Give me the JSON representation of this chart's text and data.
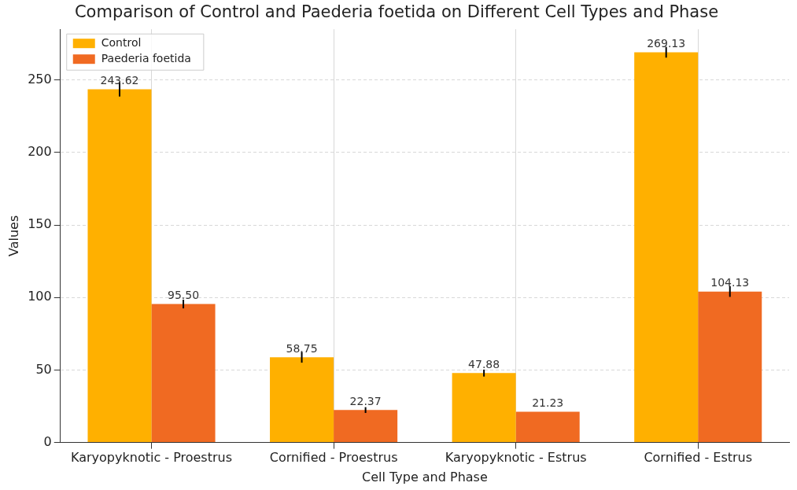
{
  "chart_data": {
    "type": "bar",
    "title": "Comparison of Control and Paederia foetida on Different Cell Types and Phase",
    "xlabel": "Cell Type and Phase",
    "ylabel": "Values",
    "categories": [
      "Karyopyknotic - Proestrus",
      "Cornified - Proestrus",
      "Karyopyknotic - Estrus",
      "Cornified - Estrus"
    ],
    "series": [
      {
        "name": "Control",
        "color": "#ffb000",
        "values": [
          243.62,
          58.75,
          47.88,
          269.13
        ],
        "value_labels": [
          "243.62",
          "58.75",
          "47.88",
          "269.13"
        ],
        "errors": [
          5,
          3.7,
          2.4,
          3.7
        ]
      },
      {
        "name": "Paederia foetida",
        "color": "#f06a22",
        "values": [
          95.5,
          22.37,
          21.23,
          104.13
        ],
        "value_labels": [
          "95.50",
          "22.37",
          "21.23",
          "104.13"
        ],
        "errors": [
          3,
          2,
          null,
          3.7
        ]
      }
    ],
    "ylim": [
      0,
      285
    ],
    "yticks": [
      0,
      50,
      100,
      150,
      200,
      250
    ],
    "grid": true,
    "legend": "top left"
  }
}
